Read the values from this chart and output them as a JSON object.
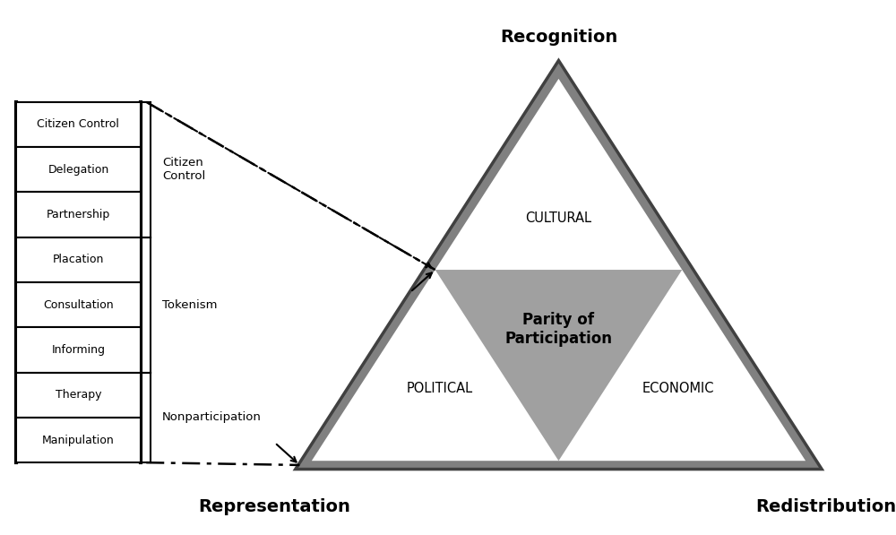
{
  "background_color": "#ffffff",
  "ladder_rungs": [
    "Citizen Control",
    "Delegation",
    "Partnership",
    "Placation",
    "Consultation",
    "Informing",
    "Therapy",
    "Manipulation"
  ],
  "groups": [
    {
      "label": "Citizen\nControl",
      "rungs": [
        0,
        1,
        2
      ]
    },
    {
      "label": "Tokenism",
      "rungs": [
        3,
        4,
        5
      ]
    },
    {
      "label": "Nonparticipation",
      "rungs": [
        6,
        7
      ]
    }
  ],
  "corner_labels": {
    "top": "Recognition",
    "bottom_left": "Representation",
    "bottom_right": "Redistribution"
  },
  "triangle_labels": {
    "top": "CULTURAL",
    "bottom_left": "POLITICAL",
    "bottom_right": "ECONOMIC",
    "center": "Parity of\nParticipation"
  },
  "outer_triangle_color": "#808080",
  "inner_triangle_color": "#a0a0a0",
  "outer_triangle_border": "#404040",
  "ladder_box_color": "#ffffff",
  "ladder_border_color": "#000000",
  "dash_dot_color": "#000000"
}
